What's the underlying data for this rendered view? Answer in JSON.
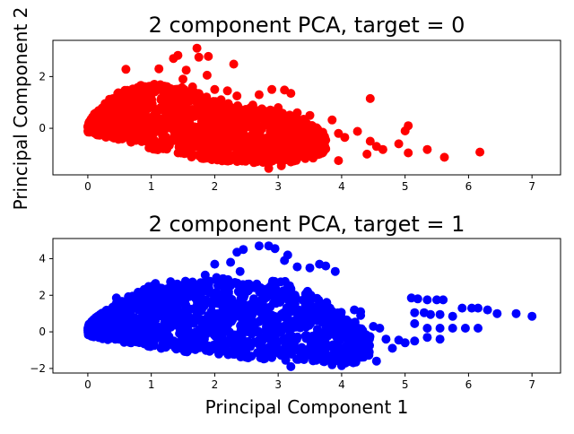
{
  "figure": {
    "shared_ylabel": "Principal Component 2",
    "shared_xlabel": "Principal Component 1"
  },
  "chart_data": [
    {
      "type": "scatter",
      "title": "2 component PCA, target = 0",
      "xlabel": "",
      "ylabel": "Principal Component 2",
      "xlim": [
        -0.55,
        7.45
      ],
      "ylim": [
        -1.8,
        3.4
      ],
      "x_ticks": [
        0,
        1,
        2,
        3,
        4,
        5,
        6,
        7
      ],
      "y_ticks": [
        0,
        2
      ],
      "y_tick_labels": [
        "0",
        "2"
      ],
      "grid": false,
      "color": "#ff0000",
      "series": [
        {
          "points": [
            [
              0.6,
              2.28
            ],
            [
              1.12,
              2.3
            ],
            [
              1.35,
              2.7
            ],
            [
              1.42,
              2.82
            ],
            [
              1.72,
              3.1
            ],
            [
              1.75,
              2.75
            ],
            [
              1.9,
              2.78
            ],
            [
              1.88,
              2.05
            ],
            [
              2.3,
              2.48
            ],
            [
              1.55,
              2.25
            ],
            [
              1.65,
              1.6
            ],
            [
              2.0,
              1.5
            ],
            [
              2.35,
              1.25
            ],
            [
              2.7,
              1.3
            ],
            [
              2.9,
              1.5
            ],
            [
              3.1,
              1.48
            ],
            [
              3.2,
              1.35
            ],
            [
              3.3,
              0.6
            ],
            [
              3.5,
              0.5
            ],
            [
              3.85,
              0.32
            ],
            [
              3.95,
              -0.2
            ],
            [
              3.75,
              -0.45
            ],
            [
              4.25,
              -0.12
            ],
            [
              4.45,
              1.15
            ],
            [
              4.45,
              -0.5
            ],
            [
              4.55,
              -0.7
            ],
            [
              4.65,
              -0.82
            ],
            [
              4.4,
              -1.0
            ],
            [
              4.9,
              -0.6
            ],
            [
              5.0,
              -0.1
            ],
            [
              5.05,
              0.1
            ],
            [
              5.05,
              -0.95
            ],
            [
              5.35,
              -0.82
            ],
            [
              5.62,
              -1.12
            ],
            [
              6.18,
              -0.92
            ],
            [
              3.95,
              -1.25
            ],
            [
              3.55,
              -1.15
            ],
            [
              3.2,
              -1.3
            ],
            [
              2.85,
              -1.55
            ],
            [
              3.05,
              -1.45
            ],
            [
              3.7,
              -0.95
            ],
            [
              3.6,
              -0.55
            ],
            [
              4.05,
              -0.35
            ],
            [
              2.2,
              1.45
            ],
            [
              1.5,
              1.9
            ],
            [
              0.85,
              1.6
            ],
            [
              1.05,
              1.7
            ],
            [
              1.3,
              1.3
            ],
            [
              2.1,
              1.1
            ],
            [
              2.6,
              0.9
            ],
            [
              3.0,
              0.8
            ],
            [
              3.4,
              0.35
            ]
          ]
        }
      ],
      "bands": [
        {
          "x": 0.0,
          "lo": -0.15,
          "hi": 0.3
        },
        {
          "x": 0.2,
          "lo": -0.3,
          "hi": 0.8
        },
        {
          "x": 0.4,
          "lo": -0.4,
          "hi": 1.3
        },
        {
          "x": 0.7,
          "lo": -0.55,
          "hi": 1.6
        },
        {
          "x": 1.0,
          "lo": -0.8,
          "hi": 1.75
        },
        {
          "x": 1.3,
          "lo": -0.95,
          "hi": 1.7
        },
        {
          "x": 1.6,
          "lo": -1.1,
          "hi": 1.5
        },
        {
          "x": 2.0,
          "lo": -1.25,
          "hi": 1.1
        },
        {
          "x": 2.4,
          "lo": -1.3,
          "hi": 0.85
        },
        {
          "x": 2.8,
          "lo": -1.35,
          "hi": 0.75
        },
        {
          "x": 3.2,
          "lo": -1.3,
          "hi": 0.55
        },
        {
          "x": 3.5,
          "lo": -1.15,
          "hi": 0.2
        },
        {
          "x": 3.75,
          "lo": -0.9,
          "hi": -0.2
        }
      ]
    },
    {
      "type": "scatter",
      "title": "2 component PCA, target = 1",
      "xlabel": "Principal Component 1",
      "ylabel": "",
      "xlim": [
        -0.55,
        7.45
      ],
      "ylim": [
        -2.25,
        5.1
      ],
      "x_ticks": [
        0,
        1,
        2,
        3,
        4,
        5,
        6,
        7
      ],
      "y_ticks": [
        -2,
        0,
        2,
        4
      ],
      "y_tick_labels": [
        "−2",
        "0",
        "2",
        "4"
      ],
      "grid": false,
      "color": "#0000ff",
      "series": [
        {
          "points": [
            [
              2.35,
              4.35
            ],
            [
              2.45,
              4.5
            ],
            [
              2.7,
              4.7
            ],
            [
              2.85,
              4.7
            ],
            [
              2.95,
              4.55
            ],
            [
              3.15,
              4.2
            ],
            [
              3.1,
              3.9
            ],
            [
              3.3,
              3.55
            ],
            [
              3.5,
              3.5
            ],
            [
              3.65,
              3.7
            ],
            [
              3.75,
              3.6
            ],
            [
              3.9,
              3.3
            ],
            [
              2.0,
              3.7
            ],
            [
              2.25,
              3.8
            ],
            [
              1.85,
              3.1
            ],
            [
              2.4,
              3.3
            ],
            [
              4.2,
              1.2
            ],
            [
              4.3,
              1.1
            ],
            [
              4.3,
              0.9
            ],
            [
              4.5,
              0.3
            ],
            [
              4.6,
              0.2
            ],
            [
              4.7,
              -0.4
            ],
            [
              4.8,
              -0.9
            ],
            [
              4.55,
              -1.6
            ],
            [
              4.15,
              -1.6
            ],
            [
              4.0,
              -1.85
            ],
            [
              3.85,
              -1.8
            ],
            [
              3.6,
              -1.55
            ],
            [
              5.1,
              1.85
            ],
            [
              5.2,
              1.8
            ],
            [
              5.35,
              1.75
            ],
            [
              5.5,
              1.75
            ],
            [
              5.6,
              1.75
            ],
            [
              5.15,
              1.05
            ],
            [
              5.3,
              1.05
            ],
            [
              5.4,
              0.95
            ],
            [
              5.55,
              0.95
            ],
            [
              5.75,
              0.85
            ],
            [
              5.9,
              1.3
            ],
            [
              6.05,
              1.3
            ],
            [
              6.15,
              1.3
            ],
            [
              6.3,
              1.2
            ],
            [
              6.45,
              1.0
            ],
            [
              6.75,
              1.0
            ],
            [
              7.0,
              0.85
            ],
            [
              5.15,
              0.45
            ],
            [
              5.35,
              0.2
            ],
            [
              5.55,
              0.2
            ],
            [
              5.75,
              0.2
            ],
            [
              5.95,
              0.2
            ],
            [
              6.15,
              0.2
            ],
            [
              5.35,
              -0.3
            ],
            [
              5.55,
              -0.4
            ],
            [
              5.15,
              -0.5
            ],
            [
              5.0,
              -0.6
            ],
            [
              4.9,
              -0.45
            ],
            [
              0.45,
              1.85
            ],
            [
              3.2,
              -1.9
            ],
            [
              2.9,
              -1.4
            ]
          ]
        }
      ],
      "bands": [
        {
          "x": 0.0,
          "lo": -0.2,
          "hi": 0.4
        },
        {
          "x": 0.2,
          "lo": -0.35,
          "hi": 1.0
        },
        {
          "x": 0.5,
          "lo": -0.55,
          "hi": 1.7
        },
        {
          "x": 0.8,
          "lo": -0.7,
          "hi": 2.2
        },
        {
          "x": 1.1,
          "lo": -0.9,
          "hi": 2.75
        },
        {
          "x": 1.4,
          "lo": -1.05,
          "hi": 2.75
        },
        {
          "x": 1.7,
          "lo": -1.15,
          "hi": 2.8
        },
        {
          "x": 2.0,
          "lo": -1.25,
          "hi": 3.0
        },
        {
          "x": 2.3,
          "lo": -1.35,
          "hi": 2.8
        },
        {
          "x": 2.6,
          "lo": -1.45,
          "hi": 2.6
        },
        {
          "x": 3.0,
          "lo": -1.55,
          "hi": 2.9
        },
        {
          "x": 3.3,
          "lo": -1.6,
          "hi": 2.5
        },
        {
          "x": 3.6,
          "lo": -1.7,
          "hi": 2.0
        },
        {
          "x": 3.9,
          "lo": -1.75,
          "hi": 1.3
        },
        {
          "x": 4.2,
          "lo": -1.7,
          "hi": 0.6
        },
        {
          "x": 4.45,
          "lo": -1.3,
          "hi": -0.2
        }
      ]
    }
  ]
}
